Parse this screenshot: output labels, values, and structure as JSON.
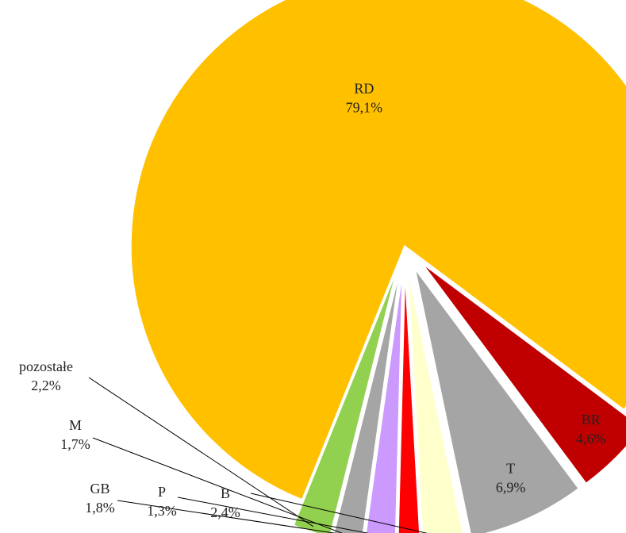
{
  "chart_data": {
    "type": "pie",
    "title": "",
    "slices": [
      {
        "label": "RD",
        "value_label": "79,1%",
        "value": 79.1,
        "color": "#FFC000"
      },
      {
        "label": "BR",
        "value_label": "4,6%",
        "value": 4.6,
        "color": "#C00000"
      },
      {
        "label": "T",
        "value_label": "6,9%",
        "value": 6.9,
        "color": "#A5A5A5"
      },
      {
        "label": "B",
        "value_label": "2,4%",
        "value": 2.4,
        "color": "#FFFFCC"
      },
      {
        "label": "P",
        "value_label": "1,3%",
        "value": 1.3,
        "color": "#FF0000"
      },
      {
        "label": "GB",
        "value_label": "1,8%",
        "value": 1.8,
        "color": "#CC99FF"
      },
      {
        "label": "M",
        "value_label": "1,7%",
        "value": 1.7,
        "color": "#A5A5A5"
      },
      {
        "label": "pozostałe",
        "value_label": "2,2%",
        "value": 2.2,
        "color": "#92D050"
      }
    ],
    "legend": "none",
    "exploded": true
  }
}
